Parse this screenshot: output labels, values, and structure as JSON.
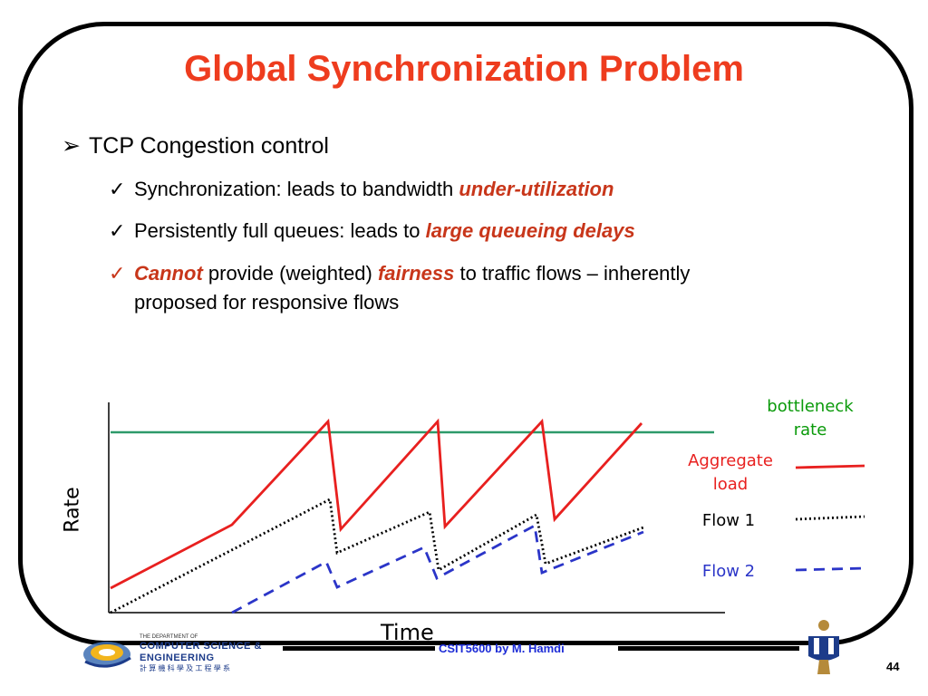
{
  "slide": {
    "title": "Global Synchronization Problem",
    "main_bullet": "TCP Congestion control",
    "bullets": [
      {
        "pre": "Synchronization: leads to bandwidth ",
        "em": "under-utilization",
        "post": ""
      },
      {
        "pre": "Persistently full queues: leads to ",
        "em": "large queueing delays",
        "post": ""
      },
      {
        "em1": "Cannot",
        "mid": " provide (weighted) ",
        "em2": "fairness",
        "post": " to traffic flows – inherently",
        "line2": "proposed for responsive flows"
      }
    ],
    "footer": "CSIT5600 by M. Hamdi",
    "page_number": "44",
    "logo": {
      "small": "THE DEPARTMENT OF",
      "line1": "COMPUTER SCIENCE &",
      "line2": "ENGINEERING",
      "chinese": "計 算 機 科 學 及 工 程 學 系"
    }
  },
  "chart_data": {
    "type": "line",
    "xlabel": "Time",
    "ylabel": "Rate",
    "series": [
      {
        "name": "Aggregate load",
        "color": "#e8201f",
        "style": "solid"
      },
      {
        "name": "Flow 1",
        "color": "#000000",
        "style": "dotted"
      },
      {
        "name": "Flow 2",
        "color": "#2b35c8",
        "style": "dashed"
      }
    ],
    "reference_line": {
      "name": "bottleneck rate",
      "color": "#2e9a6a"
    },
    "legend": {
      "bottleneck": "bottleneck rate",
      "aggregate": "Aggregate load",
      "flow1": "Flow 1",
      "flow2": "Flow 2"
    },
    "legend_colors": {
      "bottleneck": "#0a9a0a",
      "aggregate": "#e8201f",
      "flow1": "#000000",
      "flow2": "#2b35c8"
    }
  }
}
